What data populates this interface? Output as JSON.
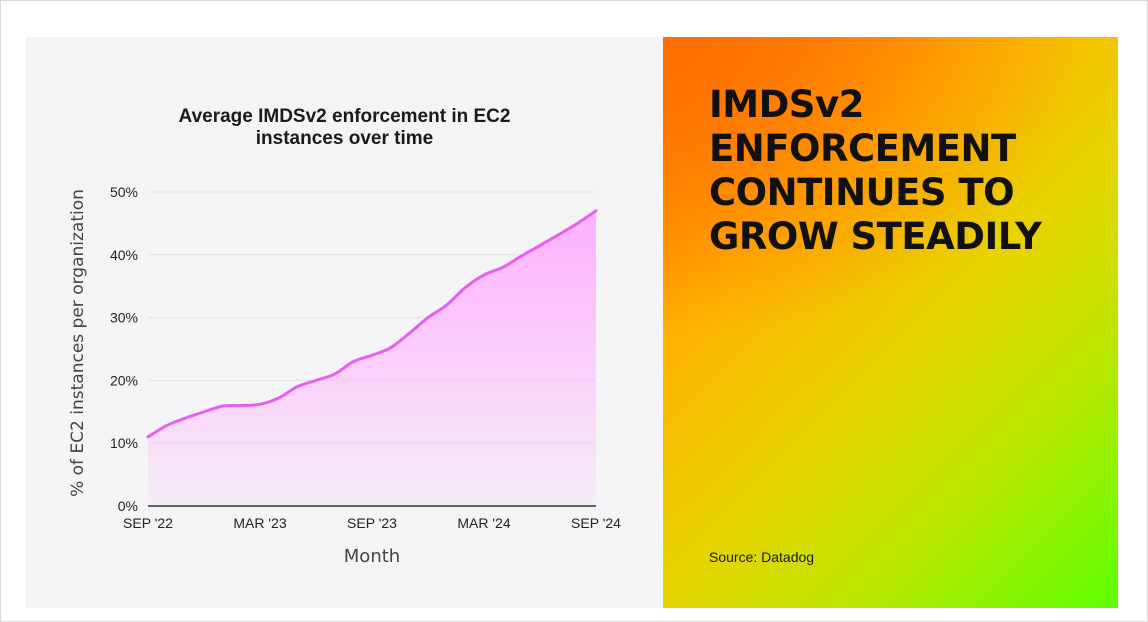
{
  "headline": [
    "IMDSv2",
    "ENFORCEMENT",
    "CONTINUES TO",
    "GROW STEADILY"
  ],
  "source": "Source: Datadog",
  "colors": {
    "line": "#e85ff0",
    "fill": "#ffb8ff",
    "panel": "#f4f4f6",
    "gradient_start": "#ff6e00",
    "gradient_end": "#5cff00"
  },
  "chart_data": {
    "type": "area",
    "title_lines": [
      "Average IMDSv2 enforcement in EC2",
      "instances over time"
    ],
    "xlabel": "Month",
    "ylabel": "% of EC2 instances per organization",
    "ylim": [
      0,
      50
    ],
    "yticks": [
      {
        "value": 0,
        "label": "0%"
      },
      {
        "value": 10,
        "label": "10%"
      },
      {
        "value": 20,
        "label": "20%"
      },
      {
        "value": 30,
        "label": "30%"
      },
      {
        "value": 40,
        "label": "40%"
      },
      {
        "value": 50,
        "label": "50%"
      }
    ],
    "xticks": [
      {
        "index": 0,
        "label": "SEP '22"
      },
      {
        "index": 6,
        "label": "MAR '23"
      },
      {
        "index": 12,
        "label": "SEP '23"
      },
      {
        "index": 18,
        "label": "MAR '24"
      },
      {
        "index": 24,
        "label": "SEP '24"
      }
    ],
    "grid": true,
    "legend": "none",
    "x": [
      "SEP '22",
      "OCT '22",
      "NOV '22",
      "DEC '22",
      "JAN '23",
      "FEB '23",
      "MAR '23",
      "APR '23",
      "MAY '23",
      "JUN '23",
      "JUL '23",
      "AUG '23",
      "SEP '23",
      "OCT '23",
      "NOV '23",
      "DEC '23",
      "JAN '24",
      "FEB '24",
      "MAR '24",
      "APR '24",
      "MAY '24",
      "JUN '24",
      "JUL '24",
      "AUG '24",
      "SEP '24"
    ],
    "series": [
      {
        "values": [
          11,
          12.8,
          14,
          15,
          15.9,
          16,
          16.2,
          17.2,
          19,
          20,
          21,
          23,
          24,
          25.2,
          27.5,
          30,
          32,
          34.8,
          36.8,
          38,
          39.8,
          41.5,
          43.2,
          45,
          47
        ]
      }
    ]
  }
}
